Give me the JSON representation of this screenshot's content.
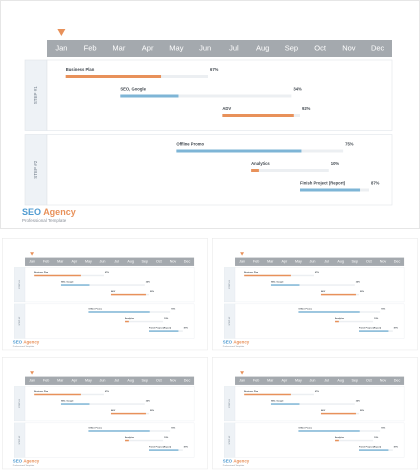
{
  "slide": {
    "months": [
      "Jan",
      "Feb",
      "Mar",
      "Apr",
      "May",
      "Jun",
      "Jul",
      "Aug",
      "Sep",
      "Oct",
      "Nov",
      "Dec"
    ],
    "groups": [
      {
        "label": "STEP #1",
        "tasks": [
          {
            "name": "Business Plan",
            "start": 0.65,
            "end": 5.6,
            "progress": 67,
            "progress_label": "67%",
            "color": "#e8915a"
          },
          {
            "name": "SEO, Google",
            "start": 2.55,
            "end": 8.5,
            "progress": 34,
            "progress_label": "34%",
            "color": "#7eb5d6"
          },
          {
            "name": "ADV",
            "start": 6.1,
            "end": 8.8,
            "progress": 92,
            "progress_label": "92%",
            "color": "#e8915a"
          }
        ]
      },
      {
        "label": "STEP #2",
        "tasks": [
          {
            "name": "Offline Promo",
            "start": 4.5,
            "end": 10.3,
            "progress": 75,
            "progress_label": "75%",
            "color": "#7eb5d6"
          },
          {
            "name": "Analytics",
            "start": 7.1,
            "end": 9.8,
            "progress": 10,
            "progress_label": "10%",
            "color": "#e8915a"
          },
          {
            "name": "Finish Project (Report)",
            "start": 8.8,
            "end": 11.2,
            "progress": 87,
            "progress_label": "87%",
            "color": "#7eb5d6"
          }
        ]
      }
    ],
    "brand_first": "SEO",
    "brand_second": "Agency",
    "subtitle": "Professional Template"
  }
}
